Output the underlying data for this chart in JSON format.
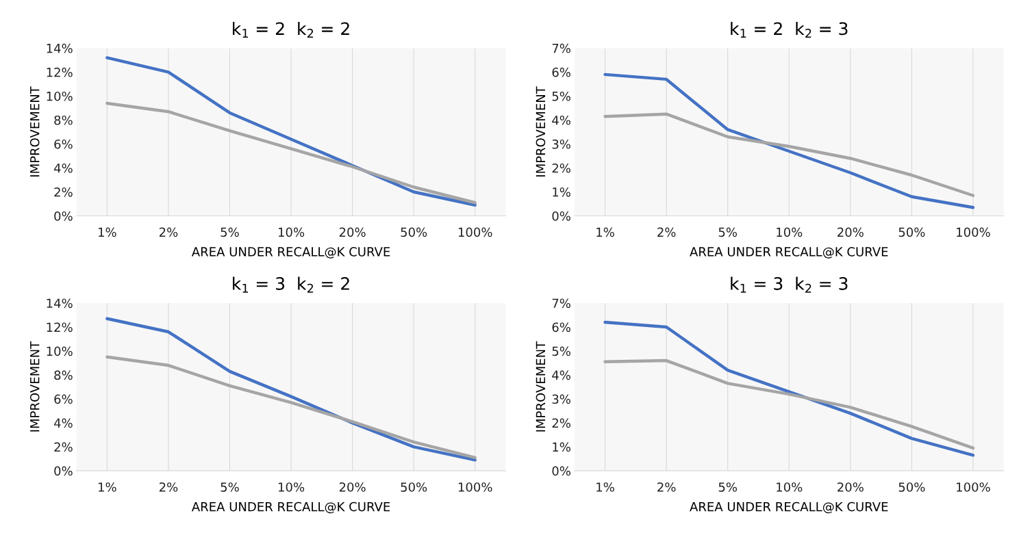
{
  "chart_data": [
    {
      "type": "line",
      "title": "k$_{1}$ = 2  k$_{2}$ = 2",
      "xlabel": "AREA UNDER RECALL@K CURVE",
      "ylabel": "IMPROVEMENT",
      "categories": [
        "1%",
        "2%",
        "5%",
        "10%",
        "20%",
        "50%",
        "100%"
      ],
      "ylim": [
        0,
        14
      ],
      "yticks": [
        {
          "value": 0,
          "label": "0%"
        },
        {
          "value": 2,
          "label": "2%"
        },
        {
          "value": 4,
          "label": "4%"
        },
        {
          "value": 6,
          "label": "6%"
        },
        {
          "value": 8,
          "label": "8%"
        },
        {
          "value": 10,
          "label": "10%"
        },
        {
          "value": 12,
          "label": "12%"
        },
        {
          "value": 14,
          "label": "14%"
        }
      ],
      "grid": "x",
      "series": [
        {
          "color": "#4472c4",
          "values": [
            13.2,
            12.0,
            8.6,
            6.4,
            4.2,
            2.0,
            0.9
          ]
        },
        {
          "color": "#a5a5a5",
          "values": [
            9.4,
            8.7,
            7.1,
            5.6,
            4.1,
            2.4,
            1.1
          ]
        }
      ]
    },
    {
      "type": "line",
      "title": "k$_{1}$ = 2  k$_{2}$ = 3",
      "xlabel": "AREA UNDER RECALL@K CURVE",
      "ylabel": "IMPROVEMENT",
      "categories": [
        "1%",
        "2%",
        "5%",
        "10%",
        "20%",
        "50%",
        "100%"
      ],
      "ylim": [
        0,
        7
      ],
      "yticks": [
        {
          "value": 0,
          "label": "0%"
        },
        {
          "value": 1,
          "label": "1%"
        },
        {
          "value": 2,
          "label": "2%"
        },
        {
          "value": 3,
          "label": "3%"
        },
        {
          "value": 4,
          "label": "4%"
        },
        {
          "value": 5,
          "label": "5%"
        },
        {
          "value": 6,
          "label": "6%"
        },
        {
          "value": 7,
          "label": "7%"
        }
      ],
      "grid": "x",
      "series": [
        {
          "color": "#4472c4",
          "values": [
            5.9,
            5.7,
            3.6,
            2.7,
            1.8,
            0.8,
            0.35
          ]
        },
        {
          "color": "#a5a5a5",
          "values": [
            4.15,
            4.25,
            3.3,
            2.9,
            2.4,
            1.7,
            0.85
          ]
        }
      ]
    },
    {
      "type": "line",
      "title": "k$_{1}$ = 3  k$_{2}$ = 2",
      "xlabel": "AREA UNDER RECALL@K CURVE",
      "ylabel": "IMPROVEMENT",
      "categories": [
        "1%",
        "2%",
        "5%",
        "10%",
        "20%",
        "50%",
        "100%"
      ],
      "ylim": [
        0,
        14
      ],
      "yticks": [
        {
          "value": 0,
          "label": "0%"
        },
        {
          "value": 2,
          "label": "2%"
        },
        {
          "value": 4,
          "label": "4%"
        },
        {
          "value": 6,
          "label": "6%"
        },
        {
          "value": 8,
          "label": "8%"
        },
        {
          "value": 10,
          "label": "10%"
        },
        {
          "value": 12,
          "label": "12%"
        },
        {
          "value": 14,
          "label": "14%"
        }
      ],
      "grid": "x",
      "series": [
        {
          "color": "#4472c4",
          "values": [
            12.7,
            11.6,
            8.3,
            6.2,
            4.0,
            2.0,
            0.9
          ]
        },
        {
          "color": "#a5a5a5",
          "values": [
            9.5,
            8.8,
            7.1,
            5.7,
            4.1,
            2.4,
            1.1
          ]
        }
      ]
    },
    {
      "type": "line",
      "title": "k$_{1}$ = 3  k$_{2}$ = 3",
      "xlabel": "AREA UNDER RECALL@K CURVE",
      "ylabel": "IMPROVEMENT",
      "categories": [
        "1%",
        "2%",
        "5%",
        "10%",
        "20%",
        "50%",
        "100%"
      ],
      "ylim": [
        0,
        7
      ],
      "yticks": [
        {
          "value": 0,
          "label": "0%"
        },
        {
          "value": 1,
          "label": "1%"
        },
        {
          "value": 2,
          "label": "2%"
        },
        {
          "value": 3,
          "label": "3%"
        },
        {
          "value": 4,
          "label": "4%"
        },
        {
          "value": 5,
          "label": "5%"
        },
        {
          "value": 6,
          "label": "6%"
        },
        {
          "value": 7,
          "label": "7%"
        }
      ],
      "grid": "x",
      "series": [
        {
          "color": "#4472c4",
          "values": [
            6.2,
            6.0,
            4.2,
            3.3,
            2.4,
            1.35,
            0.65
          ]
        },
        {
          "color": "#a5a5a5",
          "values": [
            4.55,
            4.6,
            3.65,
            3.2,
            2.65,
            1.85,
            0.95
          ]
        }
      ]
    }
  ]
}
